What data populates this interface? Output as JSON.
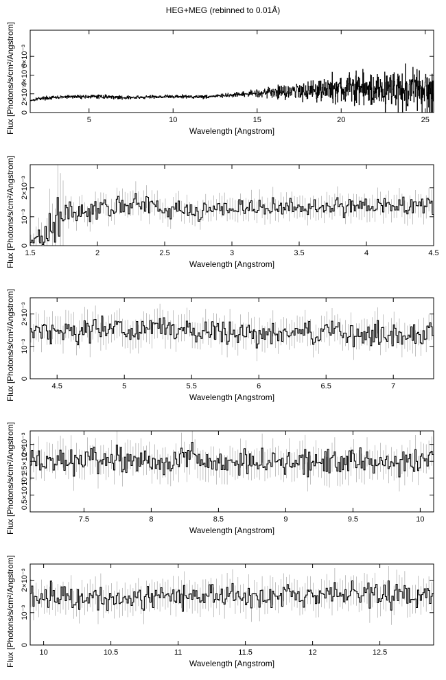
{
  "title": "HEG+MEG (rebinned to 0.01Å)",
  "chart_data": [
    {
      "type": "line",
      "xlabel": "Wavelength [Angstrom]",
      "ylabel": "Flux [Photons/s/cm²/Angstrom]",
      "xlim": [
        1.5,
        25.5
      ],
      "ylim": [
        0,
        0.0088
      ],
      "xticks": [
        {
          "v": 5,
          "label": "5"
        },
        {
          "v": 10,
          "label": "10"
        },
        {
          "v": 15,
          "label": "15"
        },
        {
          "v": 20,
          "label": "20"
        },
        {
          "v": 25,
          "label": "25"
        }
      ],
      "yticks": [
        {
          "v": 0,
          "label": "0"
        },
        {
          "v": 0.002,
          "label": "2×10⁻³"
        },
        {
          "v": 0.004,
          "label": "4×10⁻³"
        },
        {
          "v": 0.006,
          "label": "6×10⁻³"
        }
      ],
      "series": [
        {
          "x": [
            1.5,
            2,
            3,
            4,
            5,
            6,
            7,
            8,
            9,
            10,
            11,
            12,
            13,
            14,
            15,
            16,
            17,
            18,
            19,
            20,
            21,
            22,
            23,
            24,
            25,
            25.5
          ],
          "y": [
            0.0013,
            0.0015,
            0.0016,
            0.0017,
            0.0017,
            0.0017,
            0.0016,
            0.0016,
            0.0017,
            0.0017,
            0.0017,
            0.0017,
            0.0018,
            0.0019,
            0.0021,
            0.0022,
            0.0023,
            0.0024,
            0.0025,
            0.0025,
            0.0026,
            0.0025,
            0.0025,
            0.0024,
            0.0023,
            0.0022
          ]
        }
      ]
    },
    {
      "type": "line",
      "xlabel": "Wavelength [Angstrom]",
      "ylabel": "Flux [Photons/s/cm²/Angstrom]",
      "xlim": [
        1.5,
        4.5
      ],
      "ylim": [
        0,
        0.0028
      ],
      "xticks": [
        {
          "v": 1.5,
          "label": "1.5"
        },
        {
          "v": 2,
          "label": "2"
        },
        {
          "v": 2.5,
          "label": "2.5"
        },
        {
          "v": 3,
          "label": "3"
        },
        {
          "v": 3.5,
          "label": "3.5"
        },
        {
          "v": 4,
          "label": "4"
        },
        {
          "v": 4.5,
          "label": "4.5"
        }
      ],
      "yticks": [
        {
          "v": 0,
          "label": "0"
        },
        {
          "v": 0.001,
          "label": "10⁻³"
        },
        {
          "v": 0.002,
          "label": "2×10⁻³"
        }
      ],
      "series": [
        {
          "x": [
            1.5,
            1.6,
            1.7,
            1.8,
            2,
            2.25,
            2.5,
            3,
            3.5,
            4,
            4.5
          ],
          "y": [
            0.0002,
            0.0004,
            0.001,
            0.0012,
            0.0012,
            0.0015,
            0.0012,
            0.0013,
            0.0013,
            0.0014,
            0.0014
          ]
        }
      ]
    },
    {
      "type": "line",
      "xlabel": "Wavelength [Angstrom]",
      "ylabel": "Flux [Photons/s/cm²/Angstrom]",
      "xlim": [
        4.3,
        7.3
      ],
      "ylim": [
        0,
        0.0025
      ],
      "xticks": [
        {
          "v": 4.5,
          "label": "4.5"
        },
        {
          "v": 5,
          "label": "5"
        },
        {
          "v": 5.5,
          "label": "5.5"
        },
        {
          "v": 6,
          "label": "6"
        },
        {
          "v": 6.5,
          "label": "6.5"
        },
        {
          "v": 7,
          "label": "7"
        }
      ],
      "yticks": [
        {
          "v": 0,
          "label": "0"
        },
        {
          "v": 0.001,
          "label": "10⁻³"
        },
        {
          "v": 0.002,
          "label": "2×10⁻³"
        }
      ],
      "series": [
        {
          "x": [
            4.3,
            4.5,
            5,
            5.25,
            5.5,
            6,
            6.5,
            7,
            7.3
          ],
          "y": [
            0.0015,
            0.0015,
            0.0015,
            0.0016,
            0.0014,
            0.0014,
            0.0014,
            0.0014,
            0.0014
          ]
        }
      ]
    },
    {
      "type": "line",
      "xlabel": "Wavelength [Angstrom]",
      "ylabel": "Flux [Photons/s/cm²/Angstrom]",
      "xlim": [
        7.1,
        10.1
      ],
      "ylim": [
        0,
        0.0024
      ],
      "xticks": [
        {
          "v": 7.5,
          "label": "7.5"
        },
        {
          "v": 8,
          "label": "8"
        },
        {
          "v": 8.5,
          "label": "8.5"
        },
        {
          "v": 9,
          "label": "9"
        },
        {
          "v": 9.5,
          "label": "9.5"
        },
        {
          "v": 10,
          "label": "10"
        }
      ],
      "yticks": [
        {
          "v": 0.0005,
          "label": "0.5×10⁻³"
        },
        {
          "v": 0.001,
          "label": "10⁻³"
        },
        {
          "v": 0.0015,
          "label": "1.5×10⁻³"
        },
        {
          "v": 0.002,
          "label": "2×10⁻³"
        }
      ],
      "series": [
        {
          "x": [
            7.1,
            7.5,
            8,
            8.2,
            8.5,
            9,
            9.5,
            10,
            10.1
          ],
          "y": [
            0.0015,
            0.0015,
            0.0015,
            0.0016,
            0.0015,
            0.0015,
            0.0015,
            0.0015,
            0.0015
          ]
        }
      ]
    },
    {
      "type": "line",
      "xlabel": "Wavelength [Angstrom]",
      "ylabel": "Flux [Photons/s/cm²/Angstrom]",
      "xlim": [
        9.9,
        12.9
      ],
      "ylim": [
        0,
        0.0025
      ],
      "xticks": [
        {
          "v": 10,
          "label": "10"
        },
        {
          "v": 10.5,
          "label": "10.5"
        },
        {
          "v": 11,
          "label": "11"
        },
        {
          "v": 11.5,
          "label": "11.5"
        },
        {
          "v": 12,
          "label": "12"
        },
        {
          "v": 12.5,
          "label": "12.5"
        }
      ],
      "yticks": [
        {
          "v": 0,
          "label": "0"
        },
        {
          "v": 0.001,
          "label": "10⁻³"
        },
        {
          "v": 0.002,
          "label": "2×10⁻³"
        }
      ],
      "series": [
        {
          "x": [
            9.9,
            10,
            10.5,
            11,
            11.25,
            11.5,
            12,
            12.5,
            12.9
          ],
          "y": [
            0.0015,
            0.0015,
            0.0015,
            0.0015,
            0.0016,
            0.0015,
            0.0015,
            0.0016,
            0.0015
          ]
        }
      ]
    }
  ]
}
